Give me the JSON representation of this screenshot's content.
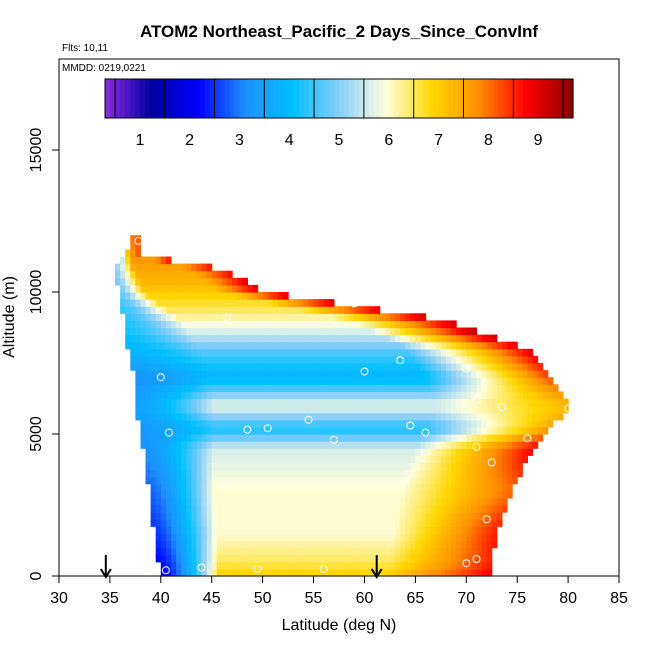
{
  "chart_data": {
    "type": "heatmap",
    "title": "ATOM2 Northeast_Pacific_2 Days_Since_ConvInf",
    "flights_label": "Flts: 10,11",
    "dates_label": "MMDD: 0219,0221",
    "xlabel": "Latitude (deg N)",
    "ylabel": "Altitude (m)",
    "xlim": [
      30,
      85
    ],
    "ylim": [
      0,
      17500
    ],
    "x_ticks": [
      30,
      35,
      40,
      45,
      50,
      55,
      60,
      65,
      70,
      75,
      80,
      85
    ],
    "y_ticks": [
      0,
      5000,
      10000,
      15000
    ],
    "colorbar": {
      "ticks": [
        1,
        2,
        3,
        4,
        5,
        6,
        7,
        8,
        9
      ],
      "range": [
        0.3,
        9.7
      ],
      "colors": [
        "#8a2be2",
        "#0000a0",
        "#0000ff",
        "#1e90ff",
        "#00bfff",
        "#87cefa",
        "#ffffe0",
        "#ffd700",
        "#ff8c00",
        "#ff0000",
        "#8b0000"
      ]
    },
    "profile_bounds": [
      {
        "alt": 0,
        "lat_min": 40.0,
        "lat_max": 72.0
      },
      {
        "alt": 1000,
        "lat_min": 39.6,
        "lat_max": 72.5
      },
      {
        "alt": 2000,
        "lat_min": 39.2,
        "lat_max": 73.2
      },
      {
        "alt": 3000,
        "lat_min": 38.9,
        "lat_max": 74.2
      },
      {
        "alt": 4000,
        "lat_min": 38.5,
        "lat_max": 75.5
      },
      {
        "alt": 5000,
        "lat_min": 38.0,
        "lat_max": 77.5
      },
      {
        "alt": 6000,
        "lat_min": 37.6,
        "lat_max": 80.0
      },
      {
        "alt": 7000,
        "lat_min": 37.4,
        "lat_max": 78.0
      },
      {
        "alt": 8000,
        "lat_min": 36.8,
        "lat_max": 76.0
      },
      {
        "alt": 9000,
        "lat_min": 36.4,
        "lat_max": 68.0
      },
      {
        "alt": 10000,
        "lat_min": 35.8,
        "lat_max": 50.0
      },
      {
        "alt": 10800,
        "lat_min": 35.5,
        "lat_max": 46.0
      },
      {
        "alt": 11300,
        "lat_min": 36.5,
        "lat_max": 38.0
      },
      {
        "alt": 11900,
        "lat_min": 37.0,
        "lat_max": 38.0
      }
    ],
    "value_layers": [
      {
        "alt": 0,
        "west": 2.0,
        "mid": 7.0,
        "east": 8.8
      },
      {
        "alt": 500,
        "west": 2.2,
        "mid": 6.5,
        "east": 8.5
      },
      {
        "alt": 1500,
        "west": 2.5,
        "mid": 6.0,
        "east": 8.6
      },
      {
        "alt": 3000,
        "west": 2.8,
        "mid": 6.0,
        "east": 8.0
      },
      {
        "alt": 4500,
        "west": 3.2,
        "mid": 5.6,
        "east": 8.8
      },
      {
        "alt": 5200,
        "west": 3.3,
        "mid": 4.2,
        "east": 7.5
      },
      {
        "alt": 6000,
        "west": 3.5,
        "mid": 5.8,
        "east": 7.2
      },
      {
        "alt": 7000,
        "west": 3.2,
        "mid": 3.8,
        "east": 8.2
      },
      {
        "alt": 7800,
        "west": 3.8,
        "mid": 4.5,
        "east": 8.8
      },
      {
        "alt": 8600,
        "west": 4.2,
        "mid": 5.6,
        "east": 9.3
      },
      {
        "alt": 9400,
        "west": 4.4,
        "mid": 6.5,
        "east": 8.8
      },
      {
        "alt": 10200,
        "west": 4.8,
        "mid": 7.2,
        "east": 8.9
      },
      {
        "alt": 11000,
        "west": 5.2,
        "mid": 7.6,
        "east": 8.5
      },
      {
        "alt": 11900,
        "west": 7.2,
        "mid": 8.0,
        "east": 8.8
      }
    ],
    "observations": [
      {
        "lat": 37.8,
        "alt": 11800
      },
      {
        "lat": 52.0,
        "alt": 10300
      },
      {
        "lat": 59.0,
        "alt": 9600
      },
      {
        "lat": 46.5,
        "alt": 9100
      },
      {
        "lat": 73.5,
        "alt": 8800
      },
      {
        "lat": 63.5,
        "alt": 7600
      },
      {
        "lat": 60.0,
        "alt": 7200
      },
      {
        "lat": 70.0,
        "alt": 7300
      },
      {
        "lat": 40.0,
        "alt": 7000
      },
      {
        "lat": 71.0,
        "alt": 6200
      },
      {
        "lat": 73.5,
        "alt": 5950
      },
      {
        "lat": 80.0,
        "alt": 5900
      },
      {
        "lat": 54.5,
        "alt": 5500
      },
      {
        "lat": 64.5,
        "alt": 5300
      },
      {
        "lat": 50.5,
        "alt": 5200
      },
      {
        "lat": 48.5,
        "alt": 5150
      },
      {
        "lat": 66.0,
        "alt": 5050
      },
      {
        "lat": 40.8,
        "alt": 5050
      },
      {
        "lat": 57.0,
        "alt": 4800
      },
      {
        "lat": 76.0,
        "alt": 4850
      },
      {
        "lat": 71.0,
        "alt": 4550
      },
      {
        "lat": 72.5,
        "alt": 4000
      },
      {
        "lat": 72.0,
        "alt": 2000
      },
      {
        "lat": 71.0,
        "alt": 600
      },
      {
        "lat": 70.0,
        "alt": 450
      },
      {
        "lat": 44.0,
        "alt": 300
      },
      {
        "lat": 40.5,
        "alt": 200
      },
      {
        "lat": 49.5,
        "alt": 250
      },
      {
        "lat": 56.0,
        "alt": 250
      }
    ],
    "arrows": [
      34.6,
      61.2
    ]
  }
}
